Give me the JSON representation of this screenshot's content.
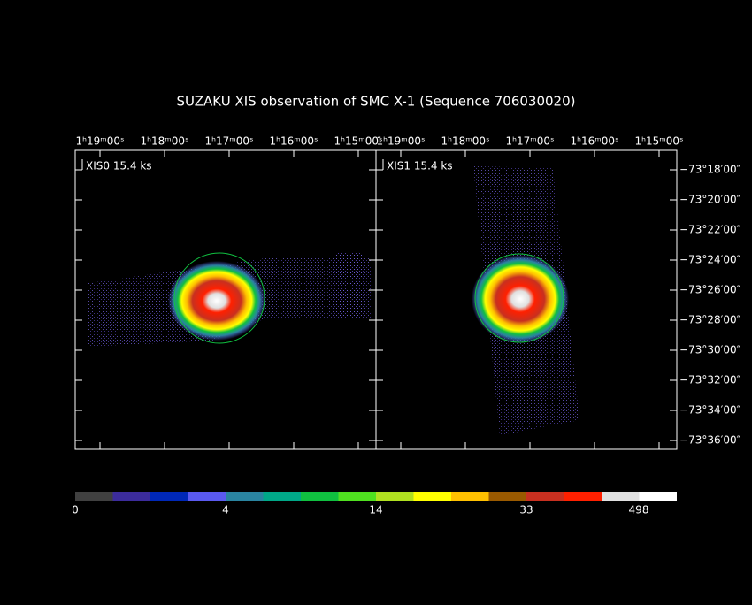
{
  "header": {
    "title": "SUZAKU XIS observation of SMC X-1  (Sequence 706030020)"
  },
  "panels": [
    {
      "label": "XIS0 15.4 ks",
      "ra_ticks": [
        "1ʰ19ᵐ00ˢ",
        "1ʰ18ᵐ00ˢ",
        "1ʰ17ᵐ00ˢ",
        "1ʰ16ᵐ00ˢ",
        "1ʰ15ᵐ00ˢ"
      ]
    },
    {
      "label": "XIS1 15.4 ks",
      "ra_ticks": [
        "1ʰ19ᵐ00ˢ",
        "1ʰ18ᵐ00ˢ",
        "1ʰ17ᵐ00ˢ",
        "1ʰ16ᵐ00ˢ",
        "1ʰ15ᵐ00ˢ"
      ]
    }
  ],
  "dec_ticks": [
    "−73°18′00″",
    "−73°20′00″",
    "−73°22′00″",
    "−73°24′00″",
    "−73°26′00″",
    "−73°28′00″",
    "−73°30′00″",
    "−73°32′00″",
    "−73°34′00″",
    "−73°36′00″"
  ],
  "colorbar": {
    "colors": [
      "#404040",
      "#3c2c9c",
      "#0028b8",
      "#5a5af0",
      "#2a84a0",
      "#00a888",
      "#10c040",
      "#50e020",
      "#b0e020",
      "#ffff00",
      "#ffc000",
      "#9a5a00",
      "#c83020",
      "#ff2000",
      "#e0e0e0",
      "#ffffff"
    ],
    "labels": [
      0,
      4,
      14,
      33,
      498
    ]
  }
}
